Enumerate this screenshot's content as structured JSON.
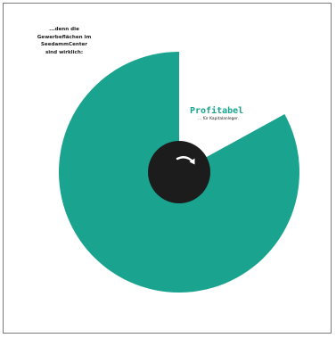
{
  "caption": {
    "lines": [
      "...denn die",
      "Gewerbeflächen im",
      "SeedammCenter",
      "sind wirklich:"
    ]
  },
  "chart_data": {
    "type": "pie",
    "style": "donut",
    "colors": {
      "main_slice": "#1aa48f",
      "hub": "#1c1c1c",
      "arrow": "#ffffff",
      "label": "#1aa48f"
    },
    "slices": [
      {
        "name": "Profitabel",
        "sub_label": "... für Kapitalanleger.",
        "value": 83,
        "exploded": true,
        "visible": true
      },
      {
        "name": "",
        "value": 17,
        "visible": false
      }
    ],
    "hub_icon": "curved-arrow-icon"
  }
}
